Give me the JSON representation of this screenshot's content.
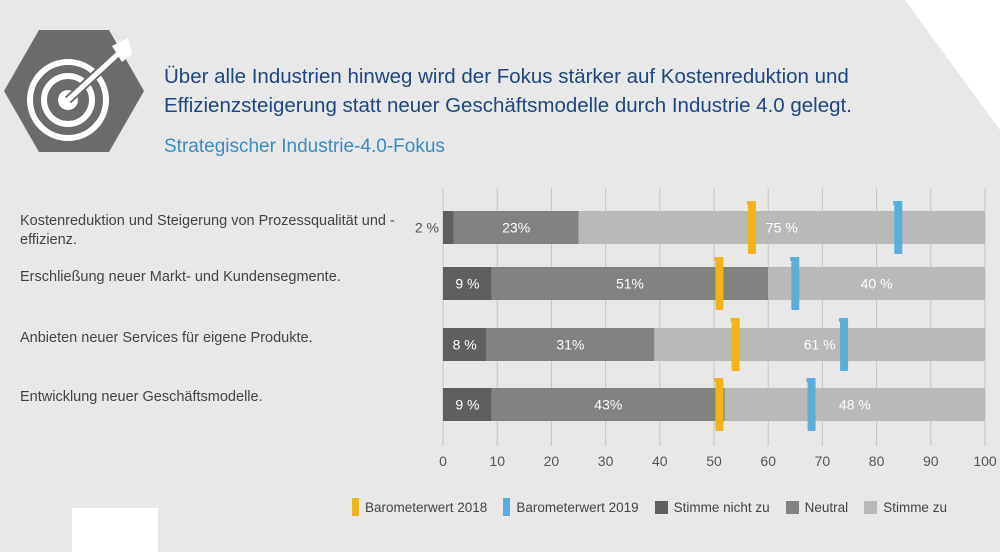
{
  "header": {
    "headline_line1": "Über alle Industrien hinweg wird der Fokus stärker auf Kostenreduktion und",
    "headline_line2": "Effizienzsteigerung statt neuer Geschäftsmodelle durch Industrie 4.0 gelegt.",
    "subtitle": "Strategischer Industrie-4.0-Fokus",
    "icon": "target-arrow-icon"
  },
  "colors": {
    "title": "#20467f",
    "subtitle": "#3a8cc2",
    "disagree": "#5f5f5f",
    "neutral": "#828282",
    "agree": "#b9b9b9",
    "barometer_2018": "#f0b41c",
    "barometer_2019": "#5aaedb",
    "badge": "#6b6b6b"
  },
  "chart_data": {
    "type": "bar",
    "orientation": "horizontal",
    "stacked": true,
    "categories": [
      "Kostenreduktion und Steigerung von Prozessqualität und -effizienz.",
      "Erschließung neuer Markt- und Kundensegmente.",
      "Anbieten neuer Services für eigene Produkte.",
      "Entwicklung neuer Geschäftsmodelle."
    ],
    "series": [
      {
        "name": "Stimme nicht zu",
        "values": [
          2,
          9,
          8,
          9
        ],
        "labels": [
          "2 %",
          "9 %",
          "8 %",
          "9 %"
        ],
        "label_position": [
          "outside",
          "inside",
          "inside",
          "inside"
        ]
      },
      {
        "name": "Neutral",
        "values": [
          23,
          51,
          31,
          43
        ],
        "labels": [
          "23%",
          "51%",
          "31%",
          "43%"
        ]
      },
      {
        "name": "Stimme zu",
        "values": [
          75,
          40,
          61,
          48
        ],
        "labels": [
          "75 %",
          "40 %",
          "61 %",
          "48 %"
        ]
      }
    ],
    "markers": [
      {
        "name": "Barometerwert 2018",
        "values": [
          57,
          51,
          54,
          51
        ]
      },
      {
        "name": "Barometerwert 2019",
        "values": [
          84,
          65,
          74,
          68
        ]
      }
    ],
    "xlim": [
      0,
      100
    ],
    "xticks": [
      "0",
      "10",
      "20",
      "30",
      "40",
      "50",
      "60",
      "70",
      "80",
      "90",
      "100"
    ],
    "grid": "vertical",
    "legend": [
      "Barometerwert 2018",
      "Barometerwert 2019",
      "Stimme nicht zu",
      "Neutral",
      "Stimme zu"
    ],
    "legend_position": "bottom"
  }
}
